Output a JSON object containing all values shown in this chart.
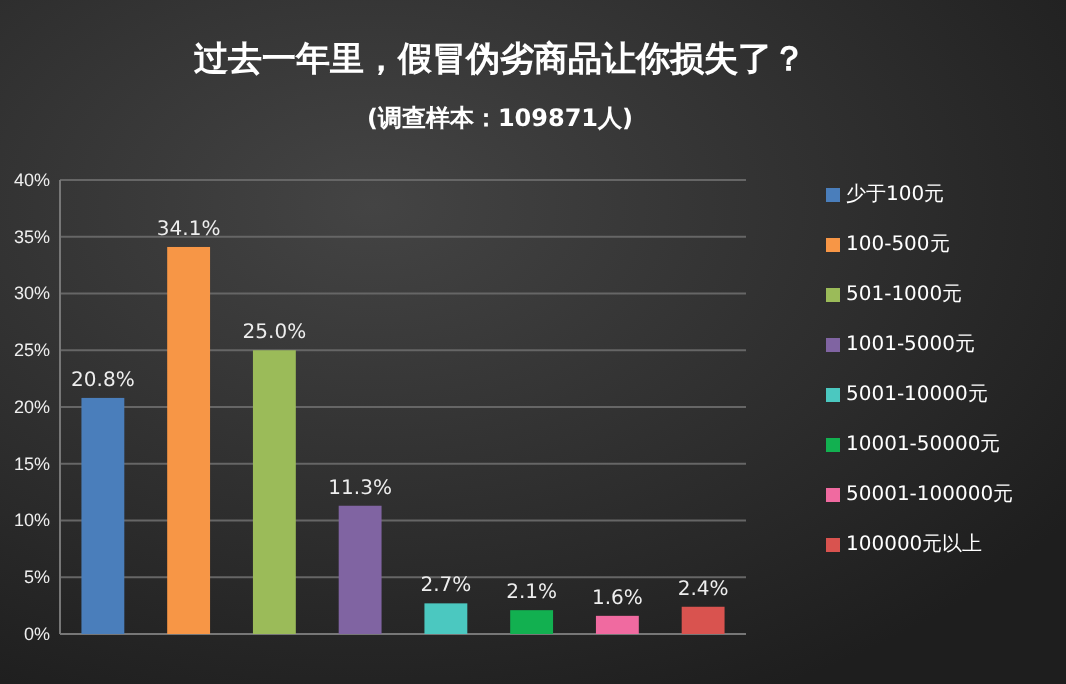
{
  "chart_data": {
    "type": "bar",
    "title": "过去一年里，假冒伪劣商品让你损失了？",
    "subtitle": "(调查样本：109871人)",
    "categories": [
      null
    ],
    "series": [
      {
        "name": "少于100元",
        "color": "#4a7ebb",
        "values": [
          20.8
        ]
      },
      {
        "name": "100-500元",
        "color": "#f79646",
        "values": [
          34.1
        ]
      },
      {
        "name": "501-1000元",
        "color": "#9bbb59",
        "values": [
          25.0
        ]
      },
      {
        "name": "1001-5000元",
        "color": "#8064a2",
        "values": [
          11.3
        ]
      },
      {
        "name": "5001-10000元",
        "color": "#4bc8c0",
        "values": [
          2.7
        ]
      },
      {
        "name": "10001-50000元",
        "color": "#12b050",
        "values": [
          2.1
        ]
      },
      {
        "name": "50001-100000元",
        "color": "#f06aa0",
        "values": [
          1.6
        ]
      },
      {
        "name": "100000元以上",
        "color": "#d9534f",
        "values": [
          2.4
        ]
      }
    ],
    "value_labels": [
      [
        "20.8%"
      ],
      [
        "34.1%"
      ],
      [
        "25.0%"
      ],
      [
        "11.3%"
      ],
      [
        "2.7%"
      ],
      [
        "2.1%"
      ],
      [
        "1.6%"
      ],
      [
        "2.4%"
      ]
    ],
    "ylim": [
      0,
      40
    ],
    "yticks": [
      {
        "value": 0,
        "label": "0%"
      },
      {
        "value": 5,
        "label": "5%"
      },
      {
        "value": 10,
        "label": "10%"
      },
      {
        "value": 15,
        "label": "15%"
      },
      {
        "value": 20,
        "label": "20%"
      },
      {
        "value": 25,
        "label": "25%"
      },
      {
        "value": 30,
        "label": "30%"
      },
      {
        "value": 35,
        "label": "35%"
      },
      {
        "value": 40,
        "label": "40%"
      }
    ],
    "grid": "y",
    "legend": "right"
  }
}
